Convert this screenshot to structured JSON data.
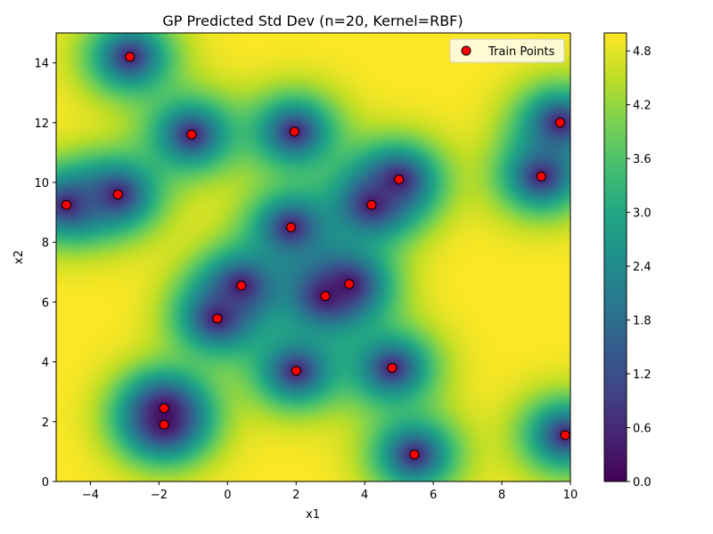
{
  "chart_data": {
    "type": "heatmap",
    "title": "GP Predicted Std Dev (n=20, Kernel=RBF)",
    "xlabel": "x1",
    "ylabel": "x2",
    "xlim": [
      -5,
      10
    ],
    "ylim": [
      0,
      15
    ],
    "x_ticks": [
      "−4",
      "−2",
      "0",
      "2",
      "4",
      "6",
      "8",
      "10"
    ],
    "y_ticks": [
      "0",
      "2",
      "4",
      "6",
      "8",
      "10",
      "12",
      "14"
    ],
    "colorbar": {
      "min": 0.0,
      "max": 5.0,
      "colormap": "viridis",
      "ticks": [
        "0.0",
        "0.6",
        "1.2",
        "1.8",
        "2.4",
        "3.0",
        "3.6",
        "4.2",
        "4.8"
      ]
    },
    "legend": {
      "label": "Train Points",
      "position": "top-right"
    },
    "marker_color": "#ff0000",
    "kernel": "RBF",
    "std_max": 5.0,
    "length_scale": 1.0,
    "train_points": [
      {
        "x": -4.7,
        "y": 9.25
      },
      {
        "x": -3.2,
        "y": 9.6
      },
      {
        "x": -2.85,
        "y": 14.2
      },
      {
        "x": -1.85,
        "y": 2.45
      },
      {
        "x": -1.85,
        "y": 1.9
      },
      {
        "x": -1.05,
        "y": 11.6
      },
      {
        "x": -0.3,
        "y": 5.45
      },
      {
        "x": 0.4,
        "y": 6.55
      },
      {
        "x": 1.85,
        "y": 8.5
      },
      {
        "x": 1.95,
        "y": 11.7
      },
      {
        "x": 2.0,
        "y": 3.7
      },
      {
        "x": 2.85,
        "y": 6.2
      },
      {
        "x": 3.55,
        "y": 6.6
      },
      {
        "x": 4.2,
        "y": 9.25
      },
      {
        "x": 4.8,
        "y": 3.8
      },
      {
        "x": 5.0,
        "y": 10.1
      },
      {
        "x": 5.45,
        "y": 0.9
      },
      {
        "x": 9.15,
        "y": 10.2
      },
      {
        "x": 9.7,
        "y": 12.0
      },
      {
        "x": 9.85,
        "y": 1.55
      }
    ]
  }
}
